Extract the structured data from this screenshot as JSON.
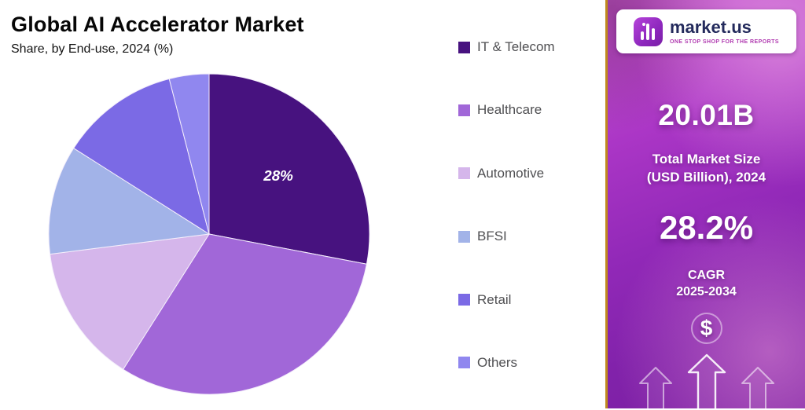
{
  "header": {
    "title": "Global AI Accelerator Market",
    "subtitle": "Share, by End-use, 2024 (%)"
  },
  "chart_data": {
    "type": "pie",
    "title": "Global AI Accelerator Market Share, by End-use, 2024 (%)",
    "unit": "%",
    "start_angle_deg": 0,
    "direction": "clockwise",
    "legend_position": "right",
    "slices": [
      {
        "label": "IT & Telecom",
        "value": 28,
        "color": "#47127f",
        "data_label": "28%"
      },
      {
        "label": "Healthcare",
        "value": 31,
        "color": "#a167d8",
        "data_label": ""
      },
      {
        "label": "Automotive",
        "value": 14,
        "color": "#d5b6eb",
        "data_label": ""
      },
      {
        "label": "BFSI",
        "value": 11,
        "color": "#a2b3e8",
        "data_label": ""
      },
      {
        "label": "Retail",
        "value": 12,
        "color": "#7b6ae5",
        "data_label": ""
      },
      {
        "label": "Others",
        "value": 4,
        "color": "#9087ef",
        "data_label": ""
      }
    ]
  },
  "panel": {
    "brand": "market.us",
    "tagline": "ONE STOP SHOP FOR THE REPORTS",
    "market_size_value": "20.01B",
    "market_size_label_line1": "Total Market Size",
    "market_size_label_line2": "(USD Billion), 2024",
    "cagr_value": "28.2%",
    "cagr_label_line1": "CAGR",
    "cagr_label_line2": "2025-2034",
    "dollar_symbol": "$",
    "colors": {
      "panel_gradient_top": "#c75ed0",
      "panel_gradient_bottom": "#7b1fa2",
      "accent_border": "#c08a1e",
      "brand_navy": "#232a5c",
      "text": "#ffffff"
    }
  }
}
